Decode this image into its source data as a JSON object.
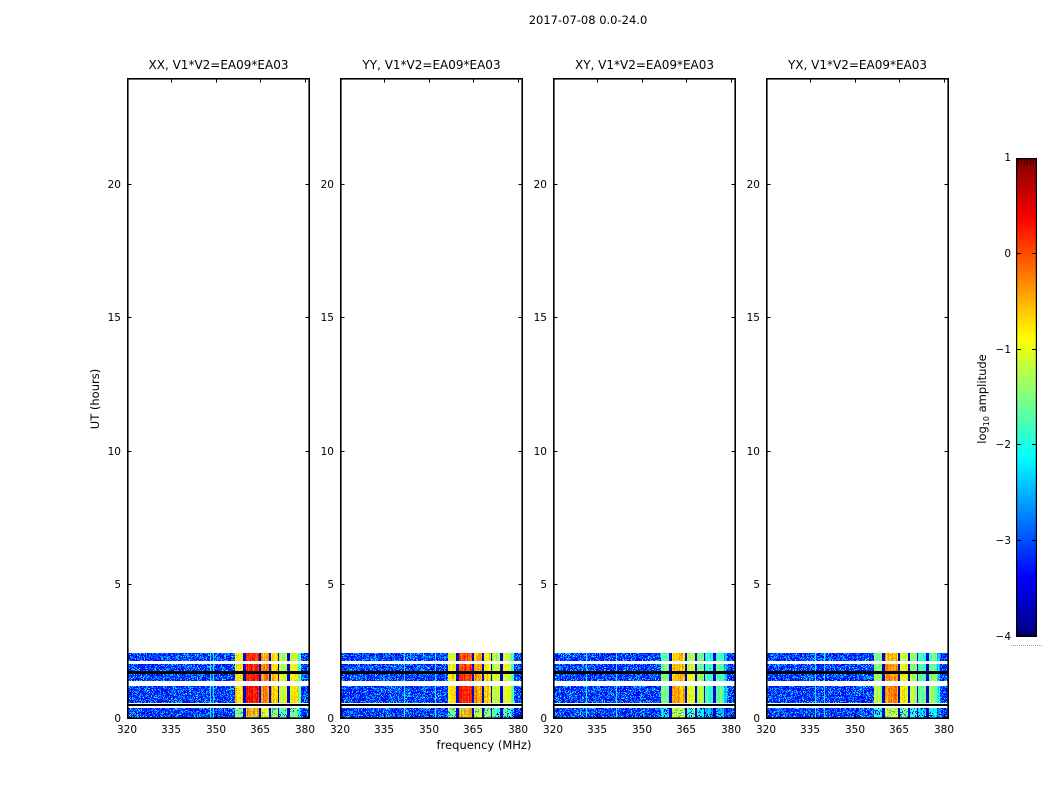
{
  "chart_data": {
    "type": "heatmap",
    "title": "2017-07-08 0.0-24.0",
    "xlabel": "frequency (MHz)",
    "ylabel": "UT (hours)",
    "x_range_mhz": [
      320,
      381.7
    ],
    "y_range_hours": [
      0,
      24
    ],
    "x_tick_values": [
      320,
      335,
      350,
      365,
      380
    ],
    "x_tick_labels": [
      "320",
      "335",
      "350",
      "365",
      "380"
    ],
    "y_tick_values": [
      0,
      5,
      10,
      15,
      20
    ],
    "y_tick_labels": [
      "0",
      "5",
      "10",
      "15",
      "20"
    ],
    "grid": false,
    "panels": [
      {
        "pol": "XX",
        "title": "XX, V1*V2=EA09*EA03",
        "core_log10_amp": 0.1
      },
      {
        "pol": "YY",
        "title": "YY, V1*V2=EA09*EA03",
        "core_log10_amp": 0.0
      },
      {
        "pol": "XY",
        "title": "XY, V1*V2=EA09*EA03",
        "core_log10_amp": -0.65
      },
      {
        "pol": "YX",
        "title": "YX, V1*V2=EA09*EA03",
        "core_log10_amp": -0.5
      }
    ],
    "colorbar": {
      "label_parts": {
        "prefix": "log",
        "sub": "10",
        "suffix": " amplitude"
      },
      "tick_values": [
        1,
        0,
        -1,
        -2,
        -3,
        -4
      ],
      "tick_labels": [
        "1",
        "0",
        "−1",
        "−2",
        "−3",
        "−4"
      ],
      "vmin": -4,
      "vmax": 1,
      "colormap": "jet"
    },
    "time_bands_ut": [
      {
        "range": [
          2.17,
          2.46
        ],
        "kind": "data",
        "gain": 0.0
      },
      {
        "range": [
          1.8,
          2.05
        ],
        "kind": "data",
        "gain": 0.1
      },
      {
        "range": [
          1.7,
          1.78
        ],
        "kind": "flagged"
      },
      {
        "range": [
          1.43,
          1.69
        ],
        "kind": "data",
        "gain": 0.15
      },
      {
        "range": [
          0.6,
          1.24
        ],
        "kind": "data",
        "gain": 0.2
      },
      {
        "range": [
          0.5,
          0.58
        ],
        "kind": "flagged"
      },
      {
        "range": [
          0.0,
          0.41
        ],
        "kind": "data",
        "gain": -0.55,
        "patchy": true
      }
    ],
    "background_log10_amp": -3.45,
    "strong_emission": {
      "sub_bands_mhz": [
        {
          "range": [
            356.3,
            359.2
          ],
          "rel": -1.0
        },
        {
          "range": [
            360.1,
            364.5
          ],
          "rel": 0.0
        },
        {
          "range": [
            365.3,
            368.0
          ],
          "rel": -0.55
        },
        {
          "range": [
            368.5,
            370.8
          ],
          "rel": -0.9
        },
        {
          "range": [
            371.3,
            373.8
          ],
          "rel": -1.35
        },
        {
          "range": [
            375.0,
            377.7
          ],
          "rel": -1.15
        },
        {
          "range": [
            377.7,
            378.6
          ],
          "rel": -1.9
        }
      ],
      "flagged_channels_mhz": [
        [
          359.2,
          360.1
        ],
        [
          364.5,
          365.3
        ],
        [
          368.0,
          368.5
        ],
        [
          370.8,
          371.3
        ],
        [
          373.8,
          375.0
        ]
      ]
    }
  }
}
